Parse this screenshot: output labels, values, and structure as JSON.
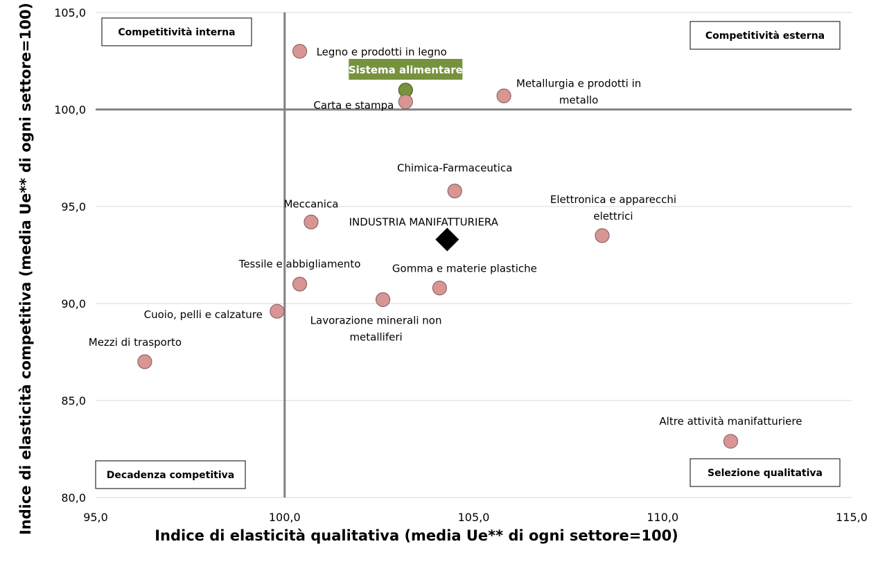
{
  "chart_data": {
    "type": "scatter",
    "xlabel": "Indice di elasticità qualitativa (media Ue** di ogni settore=100)",
    "ylabel": "Indice di elasticità competitiva (media Ue** di ogni settore=100)",
    "xlim": [
      95,
      115
    ],
    "ylim": [
      80,
      105
    ],
    "x_ticks": [
      "95,0",
      "100,0",
      "105,0",
      "110,0",
      "115,0"
    ],
    "y_ticks": [
      "80,0",
      "85,0",
      "90,0",
      "95,0",
      "100,0",
      "105,0"
    ],
    "grid": "horizontal",
    "reference_lines": {
      "x": 100,
      "y": 100
    },
    "quadrants": [
      {
        "label": "Competitività interna",
        "position": "top-left"
      },
      {
        "label": "Competitività esterna",
        "position": "top-right"
      },
      {
        "label": "Decadenza competitiva",
        "position": "bottom-left"
      },
      {
        "label": "Selezione qualitativa",
        "position": "bottom-right"
      }
    ],
    "points": [
      {
        "label": [
          "Legno e prodotti in legno"
        ],
        "x": 100.4,
        "y": 103.0,
        "style": "sector",
        "anchor": "start"
      },
      {
        "label": [
          "Sistema alimentare"
        ],
        "x": 103.2,
        "y": 101.0,
        "style": "highlight",
        "anchor": "middle"
      },
      {
        "label": [
          "Carta e stampa"
        ],
        "x": 103.2,
        "y": 100.4,
        "style": "sector",
        "anchor": "end"
      },
      {
        "label": [
          "Metallurgia e prodotti in",
          "metallo"
        ],
        "x": 105.8,
        "y": 100.7,
        "style": "sector",
        "anchor": "middle"
      },
      {
        "label": [
          "Chimica-Farmaceutica"
        ],
        "x": 104.5,
        "y": 95.8,
        "style": "sector",
        "anchor": "middle"
      },
      {
        "label": [
          "Meccanica"
        ],
        "x": 100.7,
        "y": 94.2,
        "style": "sector",
        "anchor": "middle"
      },
      {
        "label": [
          "Elettronica e apparecchi",
          "elettrici"
        ],
        "x": 108.4,
        "y": 93.5,
        "style": "sector",
        "anchor": "middle"
      },
      {
        "label": [
          "INDUSTRIA MANIFATTURIERA"
        ],
        "x": 104.3,
        "y": 93.3,
        "style": "total",
        "anchor": "middle"
      },
      {
        "label": [
          "Tessile e abbigliamento"
        ],
        "x": 100.4,
        "y": 91.0,
        "style": "sector",
        "anchor": "middle"
      },
      {
        "label": [
          "Gomma e materie plastiche"
        ],
        "x": 104.1,
        "y": 90.8,
        "style": "sector",
        "anchor": "middle"
      },
      {
        "label": [
          "Lavorazione minerali non",
          "metalliferi"
        ],
        "x": 102.6,
        "y": 90.2,
        "style": "sector",
        "anchor": "middle"
      },
      {
        "label": [
          "Cuoio, pelli e calzature"
        ],
        "x": 99.8,
        "y": 89.6,
        "style": "sector",
        "anchor": "end"
      },
      {
        "label": [
          "Mezzi di trasporto"
        ],
        "x": 96.3,
        "y": 87.0,
        "style": "sector",
        "anchor": "middle"
      },
      {
        "label": [
          "Altre attività manifatturiere"
        ],
        "x": 111.8,
        "y": 82.9,
        "style": "sector",
        "anchor": "middle"
      }
    ],
    "colors": {
      "sector_fill": "#d99594",
      "sector_stroke": "#8c6565",
      "highlight_fill": "#76923c",
      "highlight_stroke": "#4f6228",
      "total_fill": "#000000",
      "ref_line": "#808080",
      "grid": "#d9d9d9"
    }
  }
}
